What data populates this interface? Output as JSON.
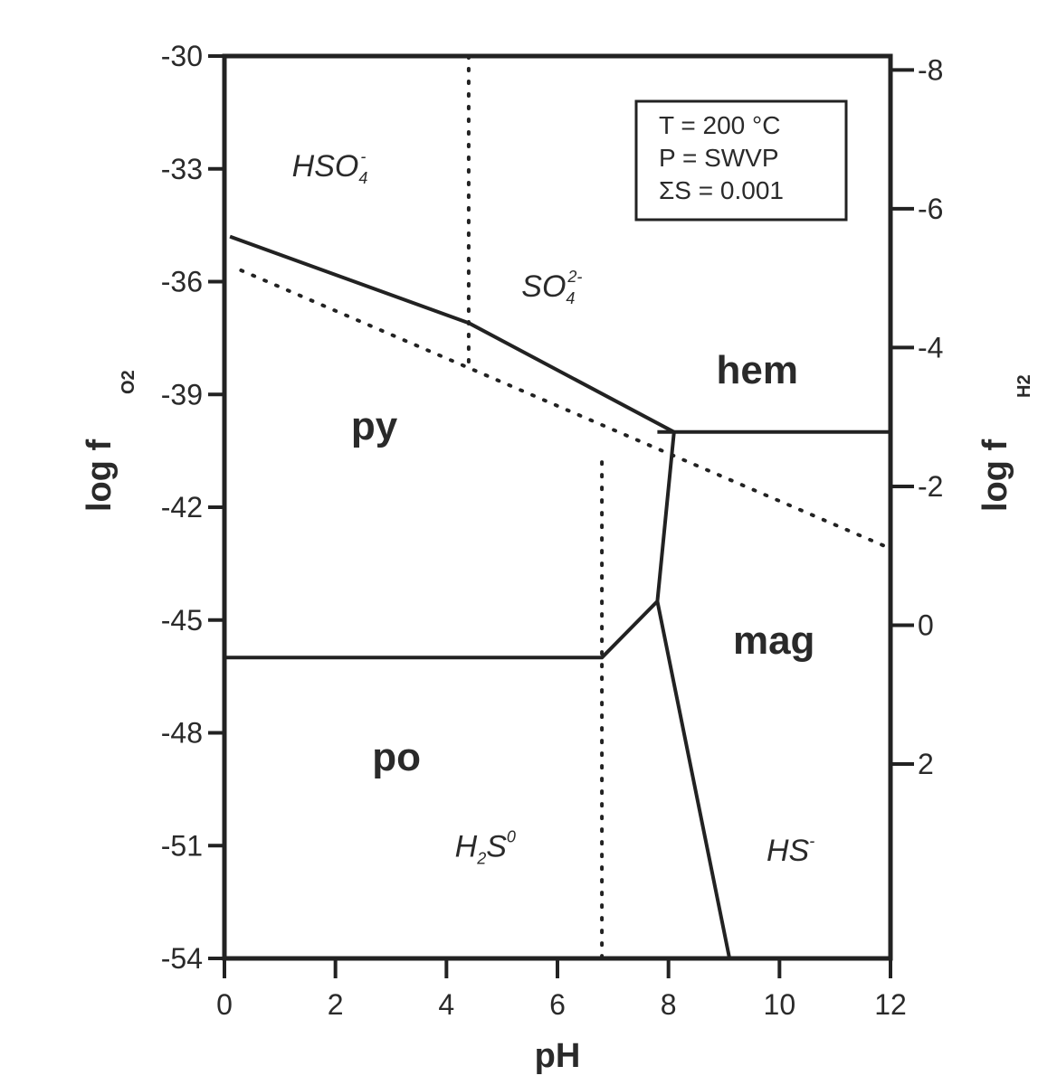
{
  "chart_data": {
    "type": "line",
    "title": "",
    "xlabel": "pH",
    "ylabel": {
      "main": "log f",
      "subscript": "O2"
    },
    "y2label": {
      "main": "log f",
      "subscript": "H2"
    },
    "xlim": [
      0,
      12
    ],
    "ylim": [
      -54,
      -30
    ],
    "y2lim": [
      4.8,
      -8.2
    ],
    "x_ticks": [
      0,
      2,
      4,
      6,
      8,
      10,
      12
    ],
    "y_ticks": [
      -30,
      -33,
      -36,
      -39,
      -42,
      -45,
      -48,
      -51,
      -54
    ],
    "y2_ticks": [
      -8,
      -6,
      -4,
      -2,
      0,
      2
    ],
    "grid": false,
    "conditions": [
      "T = 200  °C",
      "P = SWVP",
      "ΣS = 0.001"
    ],
    "boundaries": [
      {
        "style": "solid",
        "points": [
          [
            0.1,
            -34.8
          ],
          [
            4.4,
            -37.1
          ],
          [
            8.1,
            -40.0
          ],
          [
            7.8,
            -44.5
          ],
          [
            6.8,
            -46.0
          ],
          [
            0,
            -46.0
          ]
        ]
      },
      {
        "style": "solid",
        "points": [
          [
            7.8,
            -40.0
          ],
          [
            12,
            -40.0
          ]
        ]
      },
      {
        "style": "solid",
        "points": [
          [
            7.8,
            -44.5
          ],
          [
            9.1,
            -54
          ]
        ]
      },
      {
        "style": "dotted",
        "points": [
          [
            4.4,
            -30
          ],
          [
            4.4,
            -38.2
          ]
        ]
      },
      {
        "style": "dotted",
        "points": [
          [
            0.3,
            -35.7
          ],
          [
            12,
            -43.1
          ]
        ]
      },
      {
        "style": "dotted",
        "points": [
          [
            6.8,
            -40.8
          ],
          [
            6.8,
            -54
          ]
        ]
      }
    ],
    "fields": [
      {
        "label": "py",
        "kind": "mineral",
        "x": 2.7,
        "y": -40.2
      },
      {
        "label": "po",
        "kind": "mineral",
        "x": 3.1,
        "y": -49.0
      },
      {
        "label": "hem",
        "kind": "mineral",
        "x": 9.6,
        "y": -38.7
      },
      {
        "label": "mag",
        "kind": "mineral",
        "x": 9.9,
        "y": -45.9
      },
      {
        "label": "HSO",
        "sub": "4",
        "sup": "-",
        "kind": "species",
        "x": 1.9,
        "y": -33.2
      },
      {
        "label": "SO",
        "sub": "4",
        "sup": "2-",
        "kind": "species",
        "x": 5.9,
        "y": -36.4
      },
      {
        "label": "H",
        "sub": "2",
        "mid": "S",
        "sup": "0",
        "kind": "species",
        "x": 4.7,
        "y": -51.3
      },
      {
        "label": "HS",
        "sup": "-",
        "kind": "species",
        "x": 10.2,
        "y": -51.4
      }
    ]
  }
}
